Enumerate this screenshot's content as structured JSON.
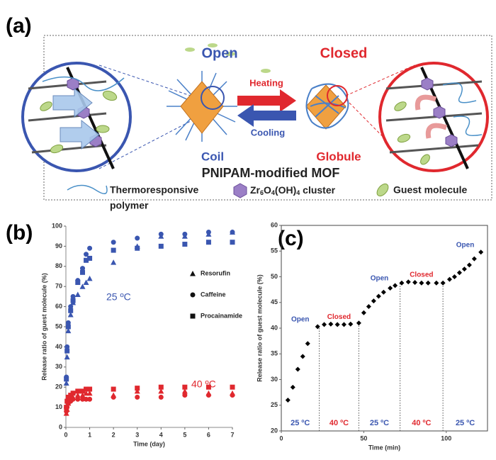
{
  "panel_labels": [
    "(a)",
    "(b)",
    "(c)"
  ],
  "diagram": {
    "open": "Open",
    "closed": "Closed",
    "heating": "Heating",
    "cooling": "Cooling",
    "coil": "Coil",
    "globule": "Globule",
    "caption": "PNIPAM-modified MOF",
    "legend": {
      "polymer": [
        "Thermoresponsive",
        "polymer"
      ],
      "cluster": [
        "Zr",
        "6",
        "O",
        "4",
        "(OH)",
        "4",
        " cluster"
      ],
      "guest": "Guest molecule"
    }
  },
  "chart_data": [
    {
      "type": "scatter",
      "x_label": "Time (day)",
      "y_label": "Release ratio of guest molecule (%)",
      "xlim": [
        0,
        7
      ],
      "xticks": [
        0,
        1,
        2,
        3,
        4,
        5,
        6,
        7
      ],
      "ylim": [
        0,
        100
      ],
      "yticks": [
        0,
        10,
        20,
        30,
        40,
        50,
        60,
        70,
        80,
        90,
        100
      ],
      "x": [
        0.02,
        0.05,
        0.1,
        0.2,
        0.3,
        0.5,
        0.7,
        0.85,
        1,
        2,
        3,
        4,
        5,
        6,
        7
      ],
      "legend": [
        {
          "name": "Resorufin",
          "marker": "triangle"
        },
        {
          "name": "Caffeine",
          "marker": "circle"
        },
        {
          "name": "Procainamide",
          "marker": "square"
        }
      ],
      "annotations": [
        {
          "text": "25 ºC",
          "color": "#3a56b0"
        },
        {
          "text": "40 ºC",
          "color": "#e0282e"
        }
      ],
      "series": [
        {
          "marker": "triangle",
          "color": "#3a56b0",
          "values": [
            22,
            35,
            48,
            56,
            62,
            66,
            70,
            72,
            74,
            82,
            90,
            95,
            95,
            96,
            97
          ]
        },
        {
          "marker": "circle",
          "color": "#3a56b0",
          "values": [
            25,
            40,
            52,
            60,
            65,
            73,
            79,
            86,
            89,
            92,
            94,
            96,
            96,
            97,
            97
          ]
        },
        {
          "marker": "square",
          "color": "#3a56b0",
          "values": [
            24,
            38,
            50,
            58,
            63,
            72,
            77,
            83,
            84,
            88,
            89,
            90,
            91,
            92,
            92
          ]
        },
        {
          "marker": "triangle",
          "color": "#e0282e",
          "values": [
            7,
            9,
            12,
            14,
            15,
            16,
            16,
            17,
            17,
            16,
            18,
            18,
            18,
            17,
            17
          ]
        },
        {
          "marker": "circle",
          "color": "#e0282e",
          "values": [
            8,
            10,
            12,
            13,
            14,
            14,
            14,
            14,
            14,
            15,
            15,
            15,
            16,
            16,
            16
          ]
        },
        {
          "marker": "square",
          "color": "#e0282e",
          "values": [
            10,
            13,
            15,
            16,
            17,
            18,
            18,
            19,
            19,
            19,
            19.5,
            20,
            20,
            20,
            20
          ]
        }
      ]
    },
    {
      "type": "scatter",
      "x_label": "Time (min)",
      "y_label": "Release ratio of guest molecule (%)",
      "frame": true,
      "xlim": [
        0,
        125
      ],
      "xticks": [
        0,
        50,
        100
      ],
      "ylim": [
        20,
        60
      ],
      "yticks": [
        20,
        25,
        30,
        35,
        40,
        45,
        50,
        55,
        60
      ],
      "x": [
        4,
        7,
        10,
        13,
        16,
        22,
        26,
        30,
        34,
        38,
        42,
        47,
        50,
        53,
        56,
        59,
        62,
        66,
        69,
        73,
        77,
        81,
        85,
        89,
        94,
        98,
        102,
        105,
        108,
        111,
        114,
        117,
        121
      ],
      "series": [
        {
          "marker": "diamond",
          "color": "#000000",
          "values": [
            26,
            28.5,
            32,
            34.5,
            37,
            40.3,
            40.7,
            40.8,
            40.7,
            40.7,
            40.8,
            41,
            43,
            44.2,
            45.3,
            46.2,
            47,
            47.8,
            48.3,
            48.8,
            49,
            48.9,
            48.8,
            48.8,
            48.8,
            48.8,
            49.5,
            50,
            50.8,
            51.5,
            52.3,
            53.5,
            54.8
          ]
        }
      ],
      "dividers": [
        23,
        47,
        72,
        98
      ],
      "phases": [
        {
          "temp": "25 ºC",
          "state": "Open",
          "color": "#3a56b0"
        },
        {
          "temp": "40 ºC",
          "state": "Closed",
          "color": "#e0282e"
        },
        {
          "temp": "25 ºC",
          "state": "Open",
          "color": "#3a56b0"
        },
        {
          "temp": "40 ºC",
          "state": "Closed",
          "color": "#e0282e"
        },
        {
          "temp": "25 ºC",
          "state": "Open",
          "color": "#3a56b0"
        }
      ]
    }
  ]
}
